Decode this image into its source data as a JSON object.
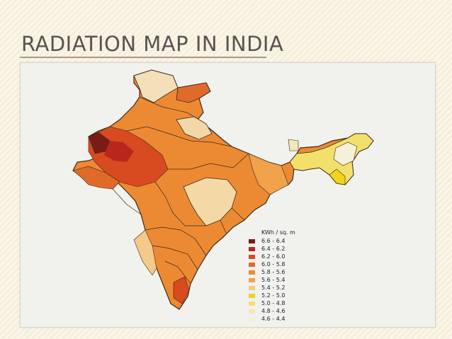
{
  "slide": {
    "title": "RADIATION MAP IN INDIA"
  },
  "legend": {
    "title": "KWh / sq. m",
    "entries": [
      {
        "label": "6.6 - 6.4",
        "color": "#7a1c14"
      },
      {
        "label": "6.4 - 6.2",
        "color": "#b8261c"
      },
      {
        "label": "6.2 - 6.0",
        "color": "#d84a20"
      },
      {
        "label": "6.0 - 5.8",
        "color": "#e06a2a"
      },
      {
        "label": "5.8 - 5.6",
        "color": "#ec8a34"
      },
      {
        "label": "5.6 - 5.4",
        "color": "#f2a24a"
      },
      {
        "label": "5.4 - 5.2",
        "color": "#f4c98a"
      },
      {
        "label": "5.2 - 5.0",
        "color": "#f2d21a"
      },
      {
        "label": "5.0 - 4.8",
        "color": "#f3e06a"
      },
      {
        "label": "4.8 - 4.6",
        "color": "#f1e8b6"
      },
      {
        "label": "4.6 - 4.4",
        "color": "#f5f0d8"
      }
    ]
  }
}
